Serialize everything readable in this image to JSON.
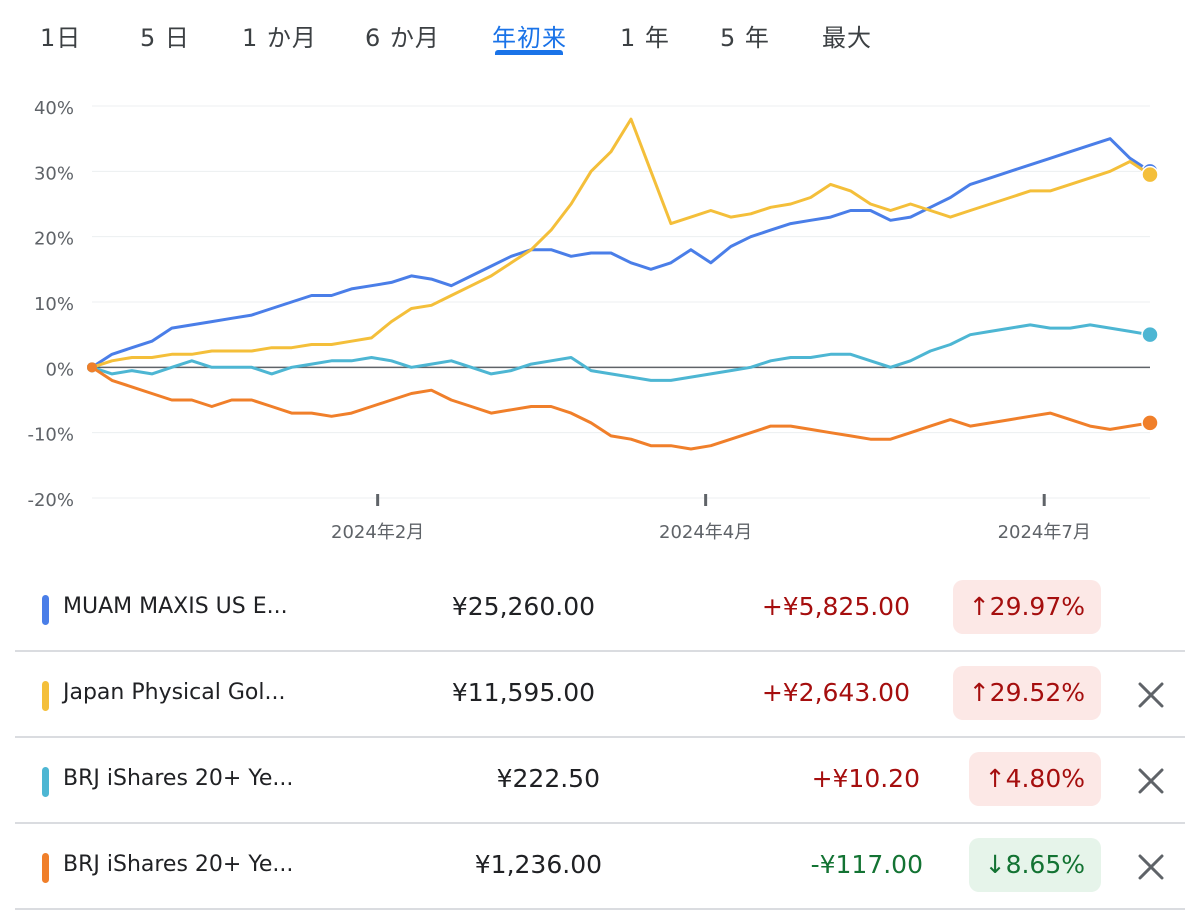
{
  "tabs": [
    {
      "label": "1日"
    },
    {
      "label": "5 日"
    },
    {
      "label": "1 か月"
    },
    {
      "label": "6 か月"
    },
    {
      "label": "年初来",
      "active": true
    },
    {
      "label": "1 年"
    },
    {
      "label": "5 年"
    },
    {
      "label": "最大"
    }
  ],
  "chart_data": {
    "type": "line",
    "yticks": [
      "40%",
      "30%",
      "20%",
      "10%",
      "0%",
      "-10%",
      "-20%"
    ],
    "ylim": [
      -20,
      40
    ],
    "xticks": [
      {
        "label": "2024年2月",
        "pos": 0.27
      },
      {
        "label": "2024年4月",
        "pos": 0.58
      },
      {
        "label": "2024年7月",
        "pos": 0.9
      }
    ],
    "series": [
      {
        "key": "muam",
        "color": "#4a7ee8",
        "end_marker": true,
        "values": [
          0,
          2,
          3,
          4,
          6,
          6.5,
          7,
          7.5,
          8,
          9,
          10,
          11,
          11,
          12,
          12.5,
          13,
          14,
          13.5,
          12.5,
          14,
          15.5,
          17,
          18,
          18,
          17,
          17.5,
          17.5,
          16,
          15,
          16,
          18,
          16,
          18.5,
          20,
          21,
          22,
          22.5,
          23,
          24,
          24,
          22.5,
          23,
          24.5,
          26,
          28,
          29,
          30,
          31,
          32,
          33,
          34,
          35,
          32,
          30
        ]
      },
      {
        "key": "gold",
        "color": "#f4bf3a",
        "end_marker": true,
        "values": [
          0,
          1,
          1.5,
          1.5,
          2,
          2,
          2.5,
          2.5,
          2.5,
          3,
          3,
          3.5,
          3.5,
          4,
          4.5,
          7,
          9,
          9.5,
          11,
          12.5,
          14,
          16,
          18,
          21,
          25,
          30,
          33,
          38,
          30,
          22,
          23,
          24,
          23,
          23.5,
          24.5,
          25,
          26,
          28,
          27,
          25,
          24,
          25,
          24,
          23,
          24,
          25,
          26,
          27,
          27,
          28,
          29,
          30,
          31.5,
          29.5
        ]
      },
      {
        "key": "brj_blue",
        "color": "#4db6d3",
        "end_marker": true,
        "values": [
          0,
          -1,
          -0.5,
          -1,
          0,
          1,
          0,
          0,
          0,
          -1,
          0,
          0.5,
          1,
          1,
          1.5,
          1,
          0,
          0.5,
          1,
          0,
          -1,
          -0.5,
          0.5,
          1,
          1.5,
          -0.5,
          -1,
          -1.5,
          -2,
          -2,
          -1.5,
          -1,
          -0.5,
          0,
          1,
          1.5,
          1.5,
          2,
          2,
          1,
          0,
          1,
          2.5,
          3.5,
          5,
          5.5,
          6,
          6.5,
          6,
          6,
          6.5,
          6,
          5.5,
          5
        ]
      },
      {
        "key": "brj_orange",
        "color": "#f07f2a",
        "end_marker": true,
        "values": [
          0,
          -2,
          -3,
          -4,
          -5,
          -5,
          -6,
          -5,
          -5,
          -6,
          -7,
          -7,
          -7.5,
          -7,
          -6,
          -5,
          -4,
          -3.5,
          -5,
          -6,
          -7,
          -6.5,
          -6,
          -6,
          -7,
          -8.5,
          -10.5,
          -11,
          -12,
          -12,
          -12.5,
          -12,
          -11,
          -10,
          -9,
          -9,
          -9.5,
          -10,
          -10.5,
          -11,
          -11,
          -10,
          -9,
          -8,
          -9,
          -8.5,
          -8,
          -7.5,
          -7,
          -8,
          -9,
          -9.5,
          -9,
          -8.5
        ]
      }
    ]
  },
  "holdings": [
    {
      "name": "MUAM MAXIS US E...",
      "color": "#4a7ee8",
      "price": "¥25,260.00",
      "change": "+¥5,825.00",
      "direction": "up",
      "arrow": "↑",
      "pct": "29.97%",
      "removable": false
    },
    {
      "name": "Japan Physical Gol...",
      "color": "#f4bf3a",
      "price": "¥11,595.00",
      "change": "+¥2,643.00",
      "direction": "up",
      "arrow": "↑",
      "pct": "29.52%",
      "removable": true
    },
    {
      "name": "BRJ iShares 20+ Ye...",
      "color": "#4db6d3",
      "price": "¥222.50",
      "change": "+¥10.20",
      "direction": "up",
      "arrow": "↑",
      "pct": "4.80%",
      "removable": true
    },
    {
      "name": "BRJ iShares 20+ Ye...",
      "color": "#f07f2a",
      "price": "¥1,236.00",
      "change": "-¥117.00",
      "direction": "down",
      "arrow": "↓",
      "pct": "8.65%",
      "removable": true
    }
  ]
}
